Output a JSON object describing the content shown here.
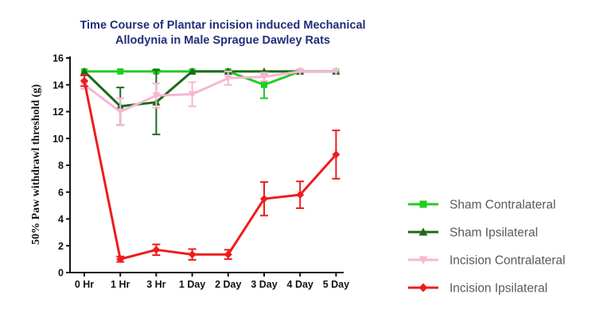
{
  "chart_data": {
    "type": "line",
    "title_lines": [
      "Time Course of Plantar incision induced Mechanical",
      "Allodynia in Male Sprague Dawley Rats"
    ],
    "ylabel": "50% Paw withdrawl threshold (g)",
    "xlabel": "",
    "categories": [
      "0 Hr",
      "1 Hr",
      "3 Hr",
      "1 Day",
      "2 Day",
      "3 Day",
      "4 Day",
      "5 Day"
    ],
    "ylim": [
      0,
      16
    ],
    "yticks": [
      "0",
      "2",
      "4",
      "6",
      "8",
      "10",
      "12",
      "14",
      "16"
    ],
    "grid": false,
    "legend_position": "right",
    "series": [
      {
        "name": "Sham Contralateral",
        "color": "#22cc22",
        "marker": "square",
        "values": [
          15,
          15,
          15,
          15,
          15,
          14,
          15,
          15
        ],
        "errors": [
          0,
          0,
          0,
          0,
          0,
          1.0,
          0,
          0
        ]
      },
      {
        "name": "Sham Ipsilateral",
        "color": "#1a6b1a",
        "marker": "triangle-up",
        "values": [
          15,
          12.4,
          12.7,
          15,
          15,
          15,
          15,
          15
        ],
        "errors": [
          0,
          1.4,
          2.4,
          0,
          0,
          0,
          0,
          0
        ]
      },
      {
        "name": "Incision Contralateral",
        "color": "#f7b6d2",
        "marker": "triangle-down",
        "values": [
          14,
          12,
          13.2,
          13.3,
          14.5,
          14.6,
          15,
          15
        ],
        "errors": [
          0.3,
          1.0,
          0.9,
          0.9,
          0.5,
          0.3,
          0,
          0
        ]
      },
      {
        "name": "Incision Ipsilateral",
        "color": "#ee1c1c",
        "marker": "diamond",
        "values": [
          14.3,
          1.0,
          1.7,
          1.35,
          1.35,
          5.5,
          5.8,
          8.8
        ],
        "errors": [
          0.4,
          0.2,
          0.4,
          0.4,
          0.35,
          1.25,
          1.0,
          1.8
        ]
      }
    ]
  }
}
